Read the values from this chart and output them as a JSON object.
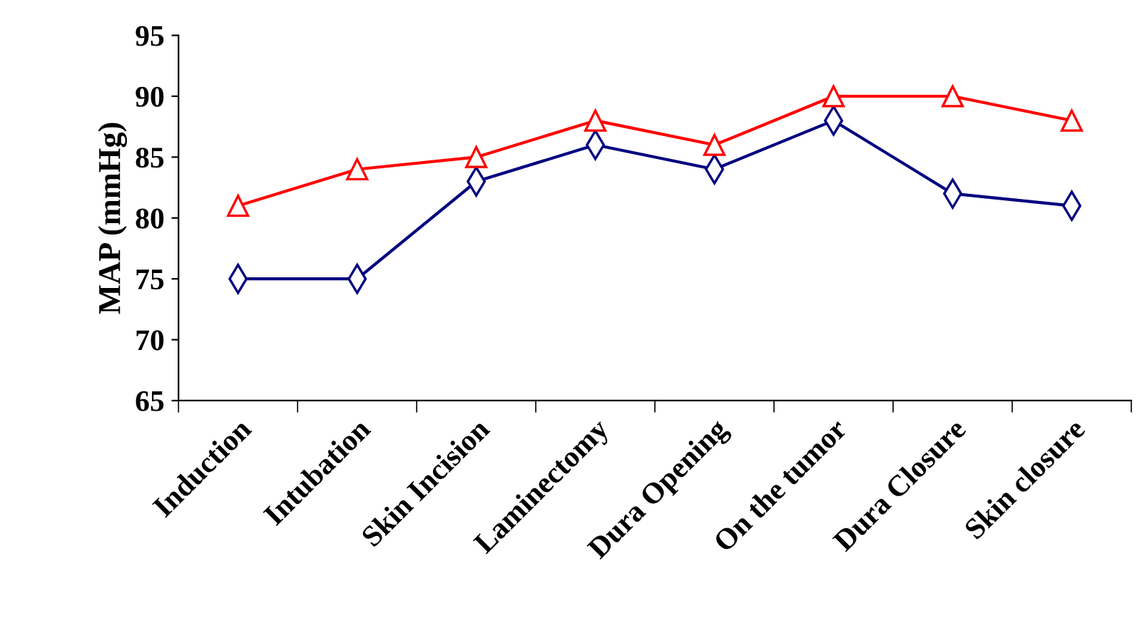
{
  "chart_data": {
    "type": "line",
    "ylabel": "MAP (mmHg)",
    "categories": [
      "Induction",
      "Intubation",
      "Skin Incision",
      "Laminectomy",
      "Dura Opening",
      "On the tumor",
      "Dura Closure",
      "Skin closure"
    ],
    "series": [
      {
        "color": "#000080",
        "marker": "diamond",
        "values": [
          75,
          75,
          83,
          86,
          84,
          88,
          82,
          81
        ]
      },
      {
        "color": "#ff0000",
        "marker": "triangle",
        "values": [
          81,
          84,
          85,
          88,
          86,
          90,
          90,
          88
        ]
      }
    ],
    "ylim": [
      65,
      95
    ],
    "yticks": [
      65,
      70,
      75,
      80,
      85,
      90,
      95
    ],
    "grid": false,
    "legend": false,
    "line_style": "solid"
  }
}
